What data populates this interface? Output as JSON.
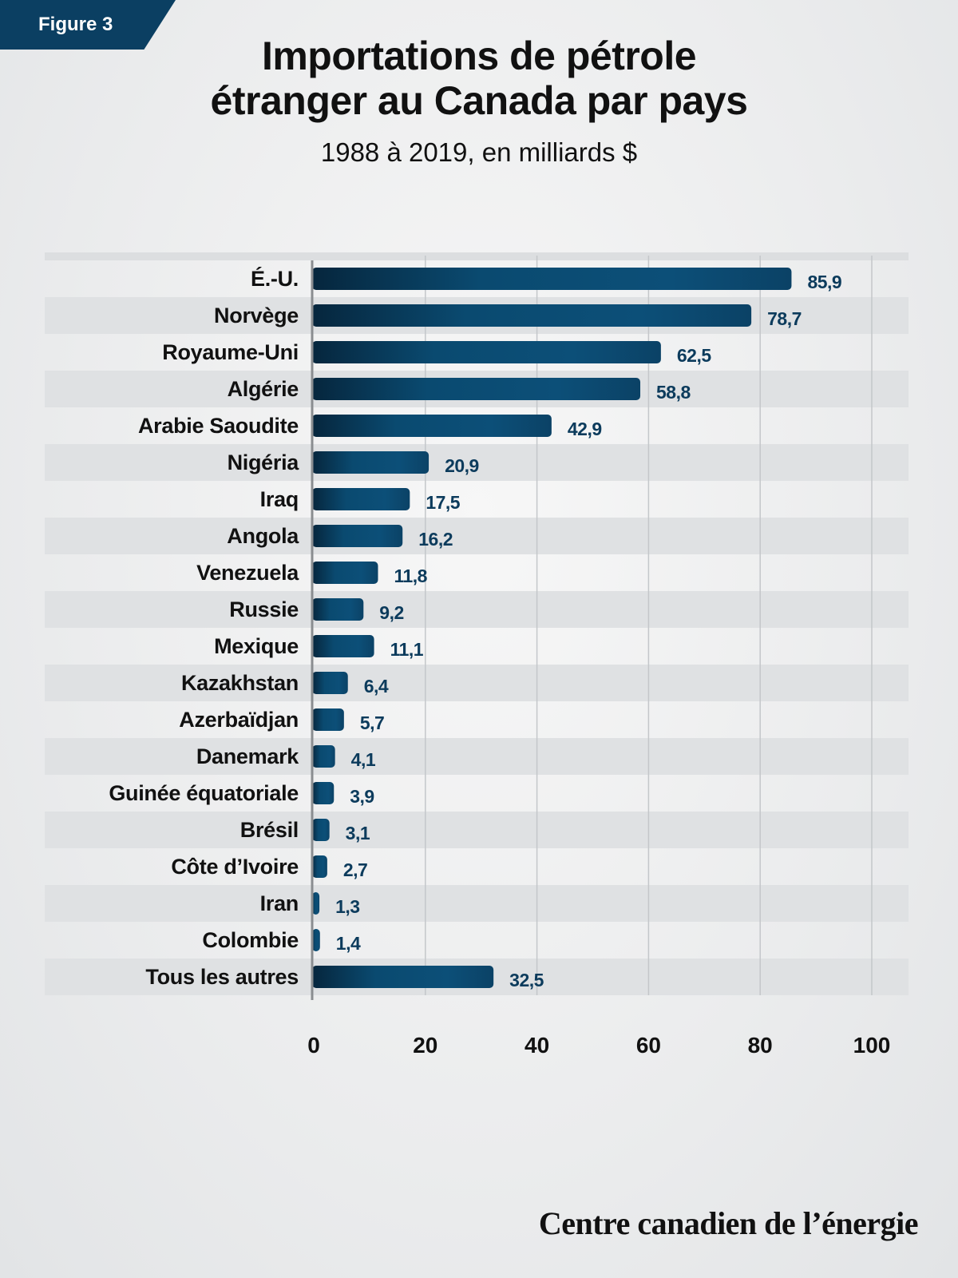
{
  "figure_label": "Figure 3",
  "footer": "Centre canadien de l’énergie",
  "colors": {
    "bar_dark": "#07324f",
    "bar_light": "#0d5a86",
    "value_text": "#0c3b5c",
    "tab": "#0b3f62"
  },
  "chart_data": {
    "type": "bar",
    "orientation": "horizontal",
    "title": "Importations de pétrole étranger au Canada par pays",
    "title_lines": [
      "Importations de pétrole",
      "étranger au Canada par pays"
    ],
    "subtitle": "1988 à 2019, en milliards $",
    "categories": [
      "É.-U.",
      "Norvège",
      "Royaume-Uni",
      "Algérie",
      "Arabie Saoudite",
      "Nigéria",
      "Iraq",
      "Angola",
      "Venezuela",
      "Russie",
      "Mexique",
      "Kazakhstan",
      "Azerbaïdjan",
      "Danemark",
      "Guinée équatoriale",
      "Brésil",
      "Côte d’Ivoire",
      "Iran",
      "Colombie",
      "Tous les autres"
    ],
    "values": [
      85.9,
      78.7,
      62.5,
      58.8,
      42.9,
      20.9,
      17.5,
      16.2,
      11.8,
      9.2,
      11.1,
      6.4,
      5.7,
      4.1,
      3.9,
      3.1,
      2.7,
      1.3,
      1.4,
      32.5
    ],
    "value_labels": [
      "85,9",
      "78,7",
      "62,5",
      "58,8",
      "42,9",
      "20,9",
      "17,5",
      "16,2",
      "11,8",
      "9,2",
      "11,1",
      "6,4",
      "5,7",
      "4,1",
      "3,9",
      "3,1",
      "2,7",
      "1,3",
      "1,4",
      "32,5"
    ],
    "xlim": [
      0,
      100
    ],
    "xticks": [
      0,
      20,
      40,
      60,
      80,
      100
    ],
    "xtick_labels": [
      "0",
      "20",
      "40",
      "60",
      "80",
      "100"
    ],
    "grid": true,
    "legend": "none"
  }
}
